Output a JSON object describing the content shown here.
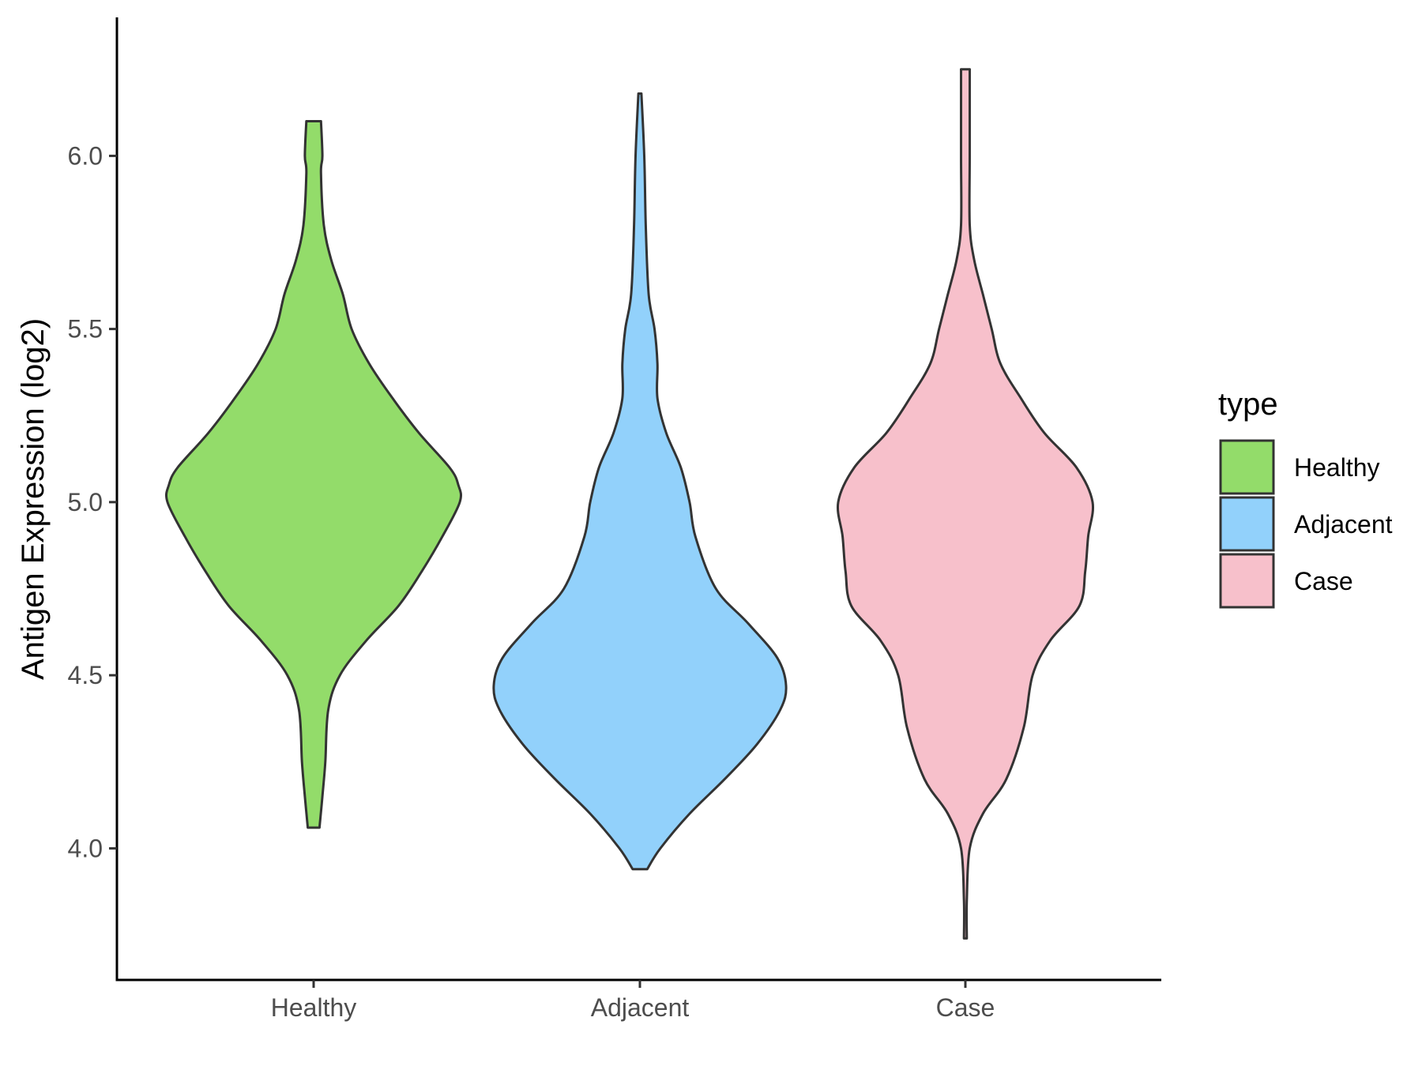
{
  "chart_data": {
    "type": "violin",
    "title": "",
    "xlabel": "",
    "ylabel": "Antigen Expression (log2)",
    "ylim": [
      3.62,
      6.4
    ],
    "yticks": [
      "4.0",
      "4.5",
      "5.0",
      "5.5",
      "6.0"
    ],
    "grid": false,
    "legend": {
      "title": "type",
      "placement": "right"
    },
    "categories": [
      "Healthy",
      "Adjacent",
      "Case"
    ],
    "series": [
      {
        "name": "Healthy",
        "color": "#93dc6a",
        "min": 4.06,
        "max": 6.1,
        "density": [
          [
            4.06,
            0.04
          ],
          [
            4.15,
            0.06
          ],
          [
            4.25,
            0.08
          ],
          [
            4.4,
            0.1
          ],
          [
            4.5,
            0.18
          ],
          [
            4.6,
            0.36
          ],
          [
            4.7,
            0.58
          ],
          [
            4.8,
            0.74
          ],
          [
            4.9,
            0.88
          ],
          [
            5.0,
            1.0
          ],
          [
            5.05,
            0.99
          ],
          [
            5.1,
            0.93
          ],
          [
            5.2,
            0.72
          ],
          [
            5.3,
            0.54
          ],
          [
            5.4,
            0.38
          ],
          [
            5.5,
            0.26
          ],
          [
            5.6,
            0.2
          ],
          [
            5.7,
            0.12
          ],
          [
            5.8,
            0.07
          ],
          [
            5.95,
            0.05
          ],
          [
            6.0,
            0.06
          ],
          [
            6.1,
            0.05
          ]
        ]
      },
      {
        "name": "Adjacent",
        "color": "#92d1fb",
        "min": 3.94,
        "max": 6.18,
        "density": [
          [
            3.94,
            0.05
          ],
          [
            4.0,
            0.14
          ],
          [
            4.1,
            0.34
          ],
          [
            4.2,
            0.58
          ],
          [
            4.3,
            0.8
          ],
          [
            4.4,
            0.96
          ],
          [
            4.47,
            1.0
          ],
          [
            4.55,
            0.94
          ],
          [
            4.65,
            0.74
          ],
          [
            4.75,
            0.52
          ],
          [
            4.9,
            0.38
          ],
          [
            5.0,
            0.34
          ],
          [
            5.1,
            0.28
          ],
          [
            5.2,
            0.18
          ],
          [
            5.3,
            0.12
          ],
          [
            5.4,
            0.12
          ],
          [
            5.5,
            0.1
          ],
          [
            5.6,
            0.06
          ],
          [
            5.8,
            0.04
          ],
          [
            6.0,
            0.03
          ],
          [
            6.18,
            0.01
          ]
        ]
      },
      {
        "name": "Case",
        "color": "#f7c0cb",
        "min": 3.74,
        "max": 6.25,
        "density": [
          [
            3.74,
            0.01
          ],
          [
            3.85,
            0.01
          ],
          [
            4.0,
            0.03
          ],
          [
            4.1,
            0.12
          ],
          [
            4.2,
            0.28
          ],
          [
            4.35,
            0.4
          ],
          [
            4.5,
            0.46
          ],
          [
            4.6,
            0.58
          ],
          [
            4.7,
            0.78
          ],
          [
            4.8,
            0.82
          ],
          [
            4.9,
            0.84
          ],
          [
            5.0,
            0.87
          ],
          [
            5.1,
            0.76
          ],
          [
            5.2,
            0.54
          ],
          [
            5.3,
            0.38
          ],
          [
            5.4,
            0.24
          ],
          [
            5.5,
            0.18
          ],
          [
            5.6,
            0.12
          ],
          [
            5.7,
            0.06
          ],
          [
            5.8,
            0.03
          ],
          [
            6.0,
            0.03
          ],
          [
            6.25,
            0.03
          ]
        ]
      }
    ]
  }
}
